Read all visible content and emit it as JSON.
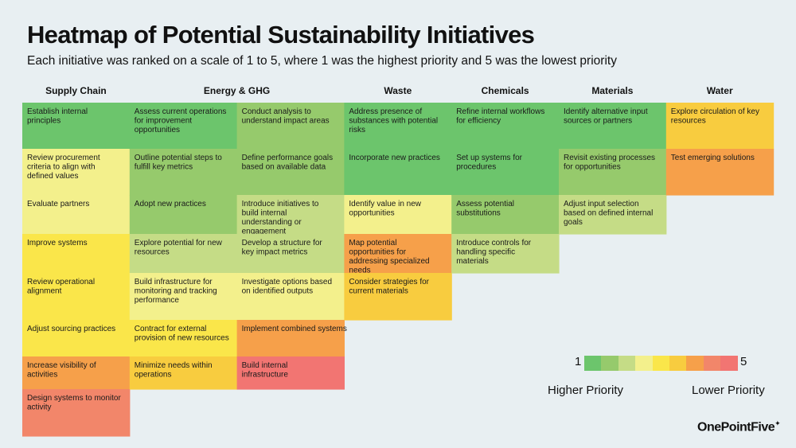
{
  "title": "Heatmap of Potential Sustainability Initiatives",
  "subtitle": "Each initiative was ranked on a scale of 1 to 5, where 1 was the highest priority and 5 was the lowest priority",
  "brand": "OnePointFive",
  "colors": {
    "background": "#e8eff2",
    "scale": [
      "#6cc56c",
      "#96ca6c",
      "#c5dc86",
      "#f3f08c",
      "#fae64a",
      "#f8cc3f",
      "#f6a04a",
      "#f2866a",
      "#f27572"
    ]
  },
  "legend": {
    "min_label": "1",
    "max_label": "5",
    "left_label": "Higher Priority",
    "right_label": "Lower Priority"
  },
  "chart_data": {
    "type": "heatmap",
    "title": "Heatmap of Potential Sustainability Initiatives",
    "value_range": [
      1,
      5
    ],
    "columns": [
      {
        "name": "Supply Chain",
        "span": 1
      },
      {
        "name": "Energy & GHG",
        "span": 2
      },
      {
        "name": "Waste",
        "span": 1
      },
      {
        "name": "Chemicals",
        "span": 1
      },
      {
        "name": "Materials",
        "span": 1
      },
      {
        "name": "Water",
        "span": 1
      }
    ],
    "cells": [
      {
        "col": 0,
        "row": 0,
        "label": "Establish internal principles",
        "value": 1.0
      },
      {
        "col": 0,
        "row": 1,
        "label": "Review procurement criteria to align with defined values",
        "value": 2.5
      },
      {
        "col": 0,
        "row": 2,
        "label": "Evaluate partners",
        "value": 2.5
      },
      {
        "col": 0,
        "row": 3,
        "label": "Improve systems",
        "value": 3.0
      },
      {
        "col": 0,
        "row": 4,
        "label": "Review operational alignment",
        "value": 3.0
      },
      {
        "col": 0,
        "row": 5,
        "label": "Adjust sourcing practices",
        "value": 3.0
      },
      {
        "col": 0,
        "row": 6,
        "label": "Increase visibility of activities",
        "value": 4.0
      },
      {
        "col": 0,
        "row": 7,
        "label": "Design systems to monitor activity",
        "value": 4.5
      },
      {
        "col": 1,
        "row": 0,
        "label": "Assess current operations for improvement opportunities",
        "value": 1.0
      },
      {
        "col": 1,
        "row": 1,
        "label": "Outline potential steps to fulfill key metrics",
        "value": 1.5
      },
      {
        "col": 1,
        "row": 2,
        "label": "Adopt new practices",
        "value": 1.5
      },
      {
        "col": 1,
        "row": 3,
        "label": "Explore potential for new resources",
        "value": 2.0
      },
      {
        "col": 1,
        "row": 4,
        "label": "Build infrastructure for monitoring and tracking performance",
        "value": 2.5
      },
      {
        "col": 1,
        "row": 5,
        "label": "Contract for external provision of new resources",
        "value": 3.0
      },
      {
        "col": 1,
        "row": 6,
        "label": "Minimize needs within operations",
        "value": 3.5
      },
      {
        "col": 2,
        "row": 0,
        "label": "Conduct analysis to understand impact areas",
        "value": 1.5
      },
      {
        "col": 2,
        "row": 1,
        "label": "Define performance goals based on available data",
        "value": 1.5
      },
      {
        "col": 2,
        "row": 2,
        "label": "Introduce initiatives to build internal understanding or engagement",
        "value": 2.0
      },
      {
        "col": 2,
        "row": 3,
        "label": "Develop a structure for key impact metrics",
        "value": 2.0
      },
      {
        "col": 2,
        "row": 4,
        "label": "Investigate options based on identified outputs",
        "value": 2.5
      },
      {
        "col": 2,
        "row": 5,
        "label": "Implement combined systems",
        "value": 4.0
      },
      {
        "col": 2,
        "row": 6,
        "label": "Build internal infrastructure",
        "value": 5.0
      },
      {
        "col": 3,
        "row": 0,
        "label": "Address presence of substances with potential risks",
        "value": 1.0
      },
      {
        "col": 3,
        "row": 1,
        "label": "Incorporate new practices",
        "value": 1.0
      },
      {
        "col": 3,
        "row": 2,
        "label": "Identify value in new opportunities",
        "value": 2.5
      },
      {
        "col": 3,
        "row": 3,
        "label": "Map potential opportunities for addressing specialized needs",
        "value": 4.0
      },
      {
        "col": 3,
        "row": 4,
        "label": "Consider strategies for current materials",
        "value": 3.5
      },
      {
        "col": 4,
        "row": 0,
        "label": "Refine internal workflows for efficiency",
        "value": 1.0
      },
      {
        "col": 4,
        "row": 1,
        "label": "Set up systems for procedures",
        "value": 1.0
      },
      {
        "col": 4,
        "row": 2,
        "label": "Assess potential substitutions",
        "value": 1.5
      },
      {
        "col": 4,
        "row": 3,
        "label": "Introduce controls for handling specific materials",
        "value": 2.0
      },
      {
        "col": 5,
        "row": 0,
        "label": "Identify alternative input sources or partners",
        "value": 1.0
      },
      {
        "col": 5,
        "row": 1,
        "label": "Revisit existing processes for opportunities",
        "value": 1.5
      },
      {
        "col": 5,
        "row": 2,
        "label": "Adjust input selection based on defined internal goals",
        "value": 2.0
      },
      {
        "col": 6,
        "row": 0,
        "label": "Explore circulation of key resources",
        "value": 3.5
      },
      {
        "col": 6,
        "row": 1,
        "label": "Test emerging solutions",
        "value": 4.0
      }
    ]
  }
}
